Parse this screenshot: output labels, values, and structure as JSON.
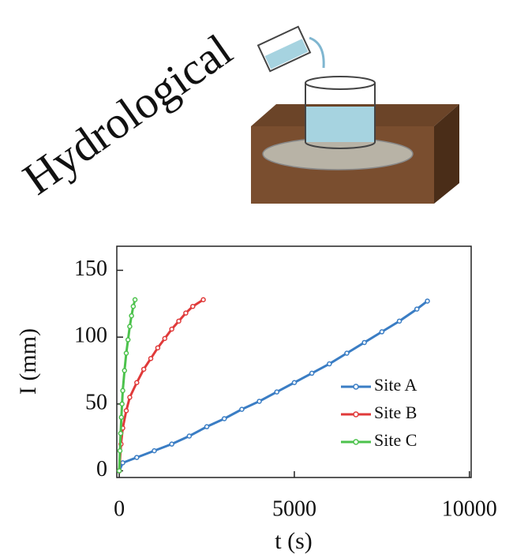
{
  "heading": "Hydrological",
  "chart_data": {
    "type": "line",
    "xlabel": "t (s)",
    "ylabel": "I (mm)",
    "xlim": [
      -70,
      10050
    ],
    "ylim": [
      -5,
      168
    ],
    "xticks": [
      0,
      5000,
      10000
    ],
    "yticks": [
      0,
      50,
      100,
      150
    ],
    "legend": "lower right",
    "series": [
      {
        "name": "Site A",
        "color": "#3a7dc4",
        "x": [
          0,
          100,
          500,
          1000,
          1500,
          2000,
          2500,
          3000,
          3500,
          4000,
          4500,
          5000,
          5500,
          6000,
          6500,
          7000,
          7500,
          8000,
          8500,
          8800
        ],
        "values": [
          0,
          6,
          10,
          15,
          20,
          26,
          33,
          39,
          46,
          52,
          59,
          66,
          73,
          80,
          88,
          96,
          104,
          112,
          121,
          127
        ]
      },
      {
        "name": "Site B",
        "color": "#e03a3a",
        "x": [
          0,
          50,
          100,
          200,
          300,
          500,
          700,
          900,
          1100,
          1300,
          1500,
          1700,
          1900,
          2100,
          2400
        ],
        "values": [
          0,
          20,
          32,
          45,
          55,
          66,
          76,
          84,
          92,
          99,
          106,
          112,
          118,
          123,
          128
        ]
      },
      {
        "name": "Site C",
        "color": "#4cc24c",
        "x": [
          0,
          20,
          40,
          60,
          80,
          100,
          150,
          200,
          250,
          300,
          350,
          400,
          450
        ],
        "values": [
          0,
          15,
          28,
          40,
          50,
          60,
          75,
          88,
          98,
          108,
          116,
          123,
          128
        ]
      }
    ]
  }
}
